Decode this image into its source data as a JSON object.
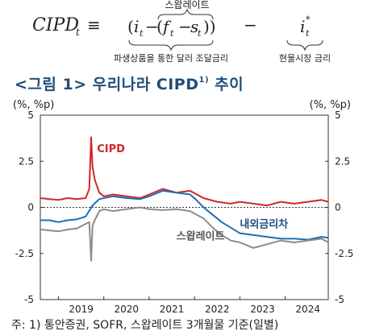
{
  "formula": {
    "lhs": "CIPD",
    "lhs_sub": "t",
    "equiv": "≡",
    "term1": "i",
    "term1_sub": "t",
    "inner_minus": "−",
    "term2": "f",
    "term2_sub": "t",
    "term3": "s",
    "term3_sub": "t",
    "over_label": "스왑레이트",
    "under_label_left": "파생상품을 통한 달러 조달금리",
    "minus": "−",
    "term4": "i",
    "term4_sup": "*",
    "term4_sub": "t",
    "under_label_right": "현물시장 금리"
  },
  "title": {
    "text": "<그림 1> 우리나라 CIPD",
    "sup": "1)",
    "suffix": " 추이"
  },
  "chart_data": {
    "type": "line",
    "unit_left": "(%, %p)",
    "unit_right": "(%, %p)",
    "xlim": [
      2018.6,
      2024.95
    ],
    "ylim": [
      -5,
      5
    ],
    "x_ticks": [
      2019,
      2020,
      2021,
      2022,
      2023,
      2024
    ],
    "x_tick_labels": [
      "2019",
      "2020",
      "2021",
      "2022",
      "2023",
      "2024"
    ],
    "y_ticks": [
      5,
      2.5,
      0,
      -2.5,
      -5
    ],
    "y_tick_labels_left": [
      "5",
      "2.5",
      "0",
      "-2.5",
      "-5"
    ],
    "y_tick_labels_right": [
      "5",
      "2.5",
      "0",
      "-2.5",
      "-5"
    ],
    "zero_line": "dotted",
    "grid": false,
    "series": [
      {
        "name": "CIPD",
        "color": "#d0272a",
        "x": [
          2018.6,
          2018.8,
          2019.0,
          2019.2,
          2019.4,
          2019.6,
          2019.68,
          2019.72,
          2019.75,
          2019.8,
          2019.9,
          2020.0,
          2020.2,
          2020.5,
          2020.8,
          2021.0,
          2021.3,
          2021.6,
          2021.9,
          2022.2,
          2022.5,
          2022.8,
          2023.0,
          2023.3,
          2023.6,
          2023.9,
          2024.2,
          2024.5,
          2024.8,
          2024.95
        ],
        "y": [
          0.5,
          0.45,
          0.4,
          0.5,
          0.45,
          0.5,
          1.0,
          3.8,
          2.2,
          1.5,
          0.8,
          0.6,
          0.7,
          0.6,
          0.5,
          0.7,
          1.0,
          0.8,
          0.9,
          0.5,
          0.3,
          0.2,
          0.3,
          0.2,
          0.1,
          0.3,
          0.2,
          0.3,
          0.4,
          0.3
        ]
      },
      {
        "name": "내외금리차",
        "color": "#1f6fb2",
        "x": [
          2018.6,
          2018.8,
          2019.0,
          2019.2,
          2019.4,
          2019.6,
          2019.75,
          2019.9,
          2020.2,
          2020.5,
          2020.8,
          2021.0,
          2021.3,
          2021.6,
          2021.9,
          2022.0,
          2022.2,
          2022.4,
          2022.6,
          2022.8,
          2023.0,
          2023.3,
          2023.6,
          2023.9,
          2024.2,
          2024.5,
          2024.8,
          2024.95
        ],
        "y": [
          -0.7,
          -0.7,
          -0.8,
          -0.7,
          -0.65,
          -0.5,
          0.1,
          0.45,
          0.6,
          0.5,
          0.45,
          0.6,
          0.9,
          0.8,
          0.7,
          0.5,
          0.0,
          -0.4,
          -0.8,
          -1.1,
          -1.4,
          -1.5,
          -1.6,
          -1.7,
          -1.7,
          -1.75,
          -1.6,
          -1.65
        ]
      },
      {
        "name": "스왑레이트",
        "color": "#8c8c8c",
        "x": [
          2018.6,
          2018.8,
          2019.0,
          2019.2,
          2019.4,
          2019.6,
          2019.68,
          2019.72,
          2019.75,
          2019.8,
          2019.9,
          2020.0,
          2020.2,
          2020.5,
          2020.8,
          2021.0,
          2021.3,
          2021.6,
          2021.9,
          2022.2,
          2022.4,
          2022.6,
          2022.8,
          2023.0,
          2023.3,
          2023.6,
          2023.9,
          2024.2,
          2024.5,
          2024.8,
          2024.95
        ],
        "y": [
          -1.2,
          -1.25,
          -1.3,
          -1.2,
          -1.15,
          -0.9,
          -0.8,
          -2.9,
          -1.0,
          -0.7,
          -0.2,
          -0.1,
          -0.2,
          -0.1,
          0.0,
          -0.1,
          -0.15,
          -0.1,
          -0.2,
          -0.6,
          -1.1,
          -1.5,
          -1.8,
          -1.9,
          -2.2,
          -2.0,
          -1.8,
          -1.9,
          -1.8,
          -1.7,
          -1.9
        ]
      }
    ],
    "labels": [
      {
        "text": "CIPD",
        "x": 2019.85,
        "y": 3.0,
        "color": "#d0272a"
      },
      {
        "text": "내외금리차",
        "x": 2023.0,
        "y": -1.1,
        "color": "#1f4e79"
      },
      {
        "text": "스왑레이트",
        "x": 2021.6,
        "y": -1.75,
        "color": "#555555"
      }
    ]
  },
  "footnote": "주: 1) 통안증권, SOFR, 스왑레이트 3개월물 기준(일별)"
}
